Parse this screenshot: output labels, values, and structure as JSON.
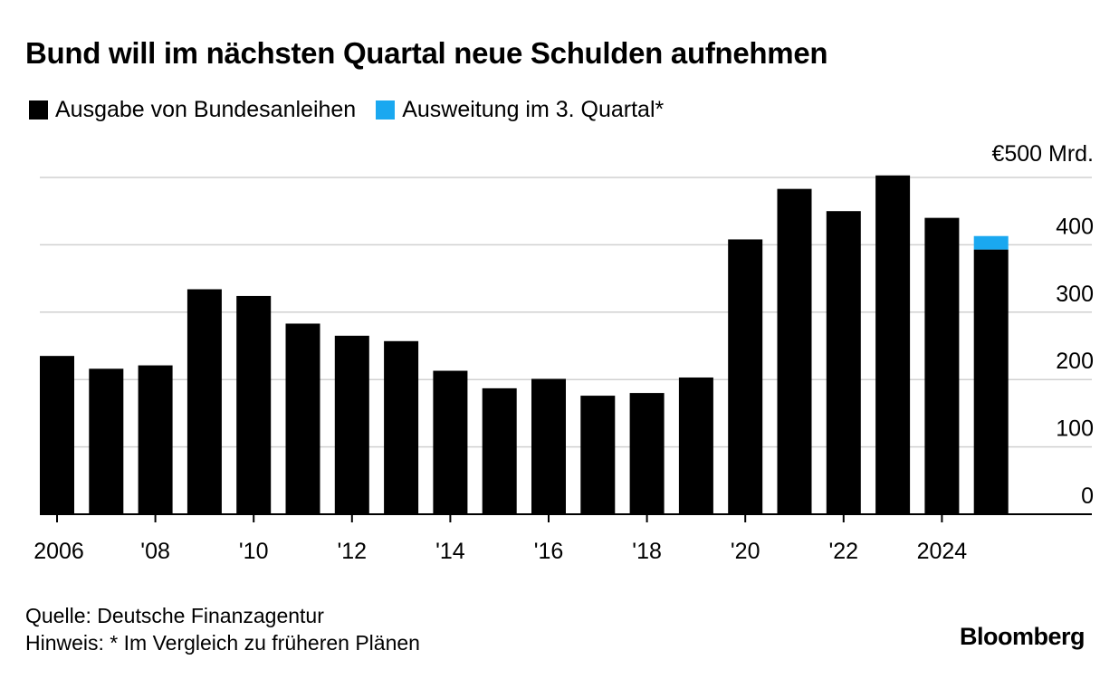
{
  "title": "Bund will im nächsten Quartal neue Schulden aufnehmen",
  "legend": [
    {
      "label": "Ausgabe von Bundesanleihen",
      "color": "#000000"
    },
    {
      "label": "Ausweitung im 3. Quartal*",
      "color": "#1aa8f0"
    }
  ],
  "footer": {
    "source": "Quelle: Deutsche Finanzagentur",
    "note": "Hinweis: * Im Vergleich zu früheren Plänen"
  },
  "brand": "Bloomberg",
  "chart_data": {
    "type": "bar",
    "stacked": true,
    "categories": [
      "2006",
      "2007",
      "2008",
      "2009",
      "2010",
      "2011",
      "2012",
      "2013",
      "2014",
      "2015",
      "2016",
      "2017",
      "2018",
      "2019",
      "2020",
      "2021",
      "2022",
      "2023",
      "2024",
      "2025"
    ],
    "x_tick_labels": [
      "2006",
      "'08",
      "'10",
      "'12",
      "'14",
      "'16",
      "'18",
      "'20",
      "'22",
      "2024"
    ],
    "x_tick_years": [
      "2006",
      "2008",
      "2010",
      "2012",
      "2014",
      "2016",
      "2018",
      "2020",
      "2022",
      "2024"
    ],
    "series": [
      {
        "name": "Ausgabe von Bundesanleihen",
        "color": "#000000",
        "values": [
          235,
          216,
          221,
          334,
          324,
          283,
          265,
          257,
          213,
          187,
          201,
          176,
          180,
          203,
          408,
          483,
          450,
          503,
          440,
          393
        ]
      },
      {
        "name": "Ausweitung im 3. Quartal*",
        "color": "#1aa8f0",
        "values": [
          0,
          0,
          0,
          0,
          0,
          0,
          0,
          0,
          0,
          0,
          0,
          0,
          0,
          0,
          0,
          0,
          0,
          0,
          0,
          20
        ]
      }
    ],
    "y_ticks": [
      {
        "value": 0,
        "label": "0"
      },
      {
        "value": 100,
        "label": "100"
      },
      {
        "value": 200,
        "label": "200"
      },
      {
        "value": 300,
        "label": "300"
      },
      {
        "value": 400,
        "label": "400"
      },
      {
        "value": 500,
        "label": "€500 Mrd."
      }
    ],
    "ylim": [
      0,
      500
    ],
    "grid": true,
    "y_axis_position": "right"
  }
}
